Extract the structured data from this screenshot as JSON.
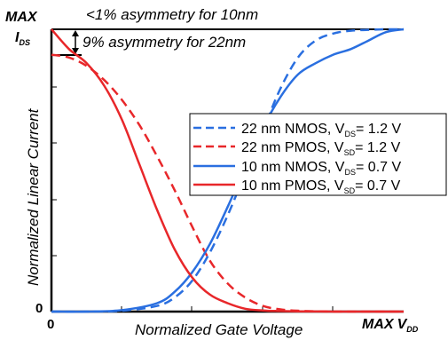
{
  "chart_data": {
    "type": "line",
    "xlabel": "Normalized Gate Voltage",
    "ylabel": "Normalized Linear Current",
    "x_ticks": {
      "min": "0",
      "max": "MAX",
      "max_sub": "V",
      "max_subscript": "DD"
    },
    "y_ticks": {
      "min": "0",
      "max": "MAX",
      "ids": "I",
      "ids_sub": "DS"
    },
    "xlim": [
      0,
      1
    ],
    "ylim": [
      0,
      1
    ],
    "annotations": {
      "top": "<1% asymmetry for 10nm",
      "second": "9% asymmetry for 22nm"
    },
    "legend": {
      "placement": "right",
      "entries": [
        {
          "prefix": "22 nm NMOS, V",
          "sub": "DS",
          "suffix": "= 1.2 V"
        },
        {
          "prefix": "22 nm PMOS, V",
          "sub": "SD",
          "suffix": "= 1.2 V"
        },
        {
          "prefix": "10 nm NMOS, V",
          "sub": "DS",
          "suffix": "= 0.7 V"
        },
        {
          "prefix": "10 nm PMOS, V",
          "sub": "SD",
          "suffix": "= 0.7 V"
        }
      ]
    },
    "series": [
      {
        "color": "#2a6fe0",
        "dash": true,
        "x": [
          0,
          0.1,
          0.2,
          0.3,
          0.35,
          0.4,
          0.45,
          0.5,
          0.55,
          0.6,
          0.65,
          0.7,
          0.75,
          0.8,
          0.85,
          0.9,
          0.95,
          1.0
        ],
        "y": [
          0,
          0,
          0.003,
          0.02,
          0.05,
          0.11,
          0.21,
          0.34,
          0.49,
          0.64,
          0.79,
          0.9,
          0.96,
          0.985,
          0.995,
          0.998,
          1.0,
          1.0
        ]
      },
      {
        "color": "#e8272a",
        "dash": true,
        "x": [
          0,
          0.05,
          0.1,
          0.15,
          0.2,
          0.25,
          0.3,
          0.35,
          0.4,
          0.45,
          0.5,
          0.55,
          0.6,
          0.65,
          0.7,
          0.75,
          0.8,
          0.9,
          1.0
        ],
        "y": [
          0.91,
          0.9,
          0.87,
          0.82,
          0.75,
          0.66,
          0.55,
          0.43,
          0.3,
          0.18,
          0.1,
          0.05,
          0.02,
          0.008,
          0.003,
          0.001,
          0,
          0,
          0
        ]
      },
      {
        "color": "#2a6fe0",
        "dash": false,
        "x": [
          0,
          0.1,
          0.2,
          0.3,
          0.35,
          0.4,
          0.45,
          0.5,
          0.55,
          0.6,
          0.65,
          0.7,
          0.75,
          0.8,
          0.85,
          0.9,
          0.95,
          1.0
        ],
        "y": [
          0,
          0,
          0.005,
          0.03,
          0.07,
          0.14,
          0.24,
          0.37,
          0.51,
          0.65,
          0.76,
          0.84,
          0.88,
          0.91,
          0.93,
          0.96,
          0.99,
          1.0
        ]
      },
      {
        "color": "#e8272a",
        "dash": false,
        "x": [
          0,
          0.05,
          0.1,
          0.15,
          0.2,
          0.25,
          0.3,
          0.35,
          0.4,
          0.45,
          0.5,
          0.55,
          0.6,
          0.65,
          0.7,
          0.8,
          0.9,
          1.0
        ],
        "y": [
          1.0,
          0.93,
          0.88,
          0.8,
          0.68,
          0.52,
          0.36,
          0.22,
          0.12,
          0.06,
          0.03,
          0.01,
          0.004,
          0.002,
          0.001,
          0,
          0,
          0
        ]
      }
    ]
  }
}
